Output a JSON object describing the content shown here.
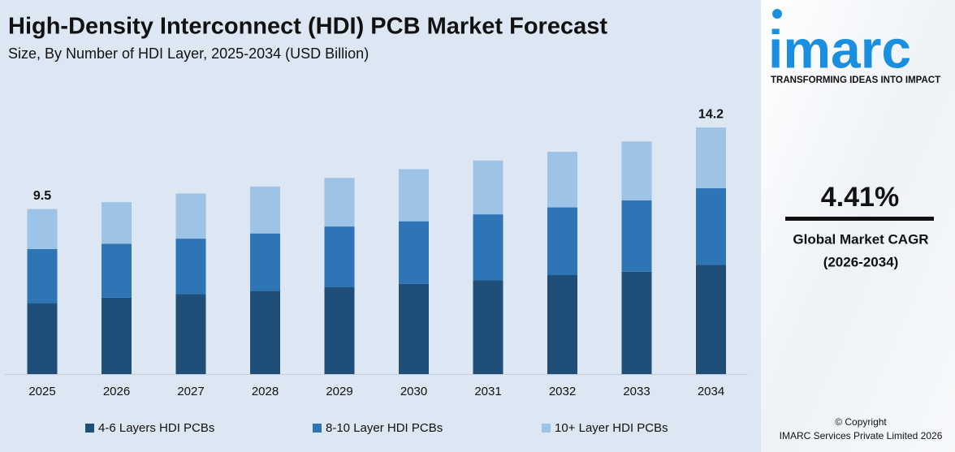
{
  "chart_data": {
    "type": "stacked_bar",
    "title": "High-Density Interconnect (HDI) PCB Market Forecast",
    "subtitle": "Size, By Number of HDI Layer, 2025-2034 (USD Billion)",
    "categories": [
      "2025",
      "2026",
      "2027",
      "2028",
      "2029",
      "2030",
      "2031",
      "2032",
      "2033",
      "2034"
    ],
    "series": [
      {
        "name": "4-6 Layers HDI PCBs",
        "color": "#1f4e79",
        "values": [
          4.1,
          4.4,
          4.6,
          4.8,
          5.0,
          5.2,
          5.4,
          5.7,
          5.9,
          6.3
        ]
      },
      {
        "name": "8-10 Layer HDI PCBs",
        "color": "#2e75b6",
        "values": [
          3.1,
          3.1,
          3.2,
          3.3,
          3.5,
          3.6,
          3.8,
          3.9,
          4.1,
          4.4
        ]
      },
      {
        "name": "10+ Layer HDI PCBs",
        "color": "#9dc3e6",
        "values": [
          2.3,
          2.4,
          2.6,
          2.7,
          2.8,
          3.0,
          3.1,
          3.2,
          3.4,
          3.5
        ]
      }
    ],
    "total_labels": [
      {
        "category": "2025",
        "value": 9.5
      },
      {
        "category": "2034",
        "value": 14.2
      }
    ],
    "ylim": [
      0,
      15
    ]
  },
  "sidebar": {
    "logo": "imarc",
    "tagline": "TRANSFORMING IDEAS INTO IMPACT",
    "cagr": "4.41%",
    "cagr_label": "Global Market CAGR",
    "cagr_period": "(2026-2034)",
    "copyright": "© Copyright",
    "company": "IMARC Services Private Limited 2026"
  }
}
